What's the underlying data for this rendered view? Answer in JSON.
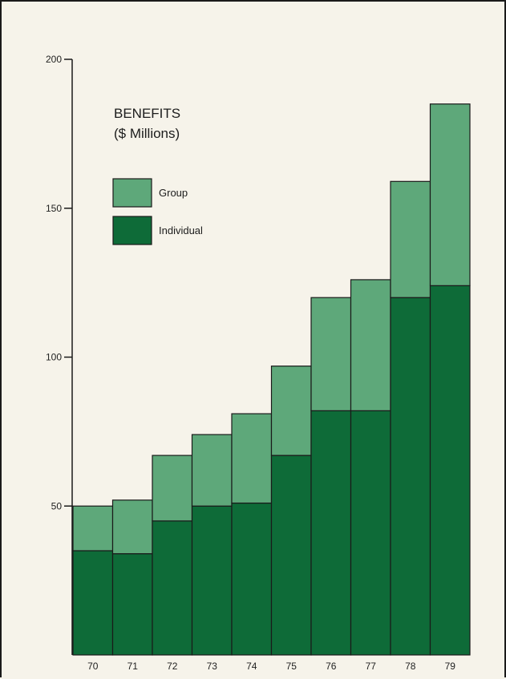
{
  "chart_data": {
    "type": "bar",
    "stacked": true,
    "title": "BENEFITS",
    "subtitle": "($ Millions)",
    "categories": [
      "70",
      "71",
      "72",
      "73",
      "74",
      "75",
      "76",
      "77",
      "78",
      "79"
    ],
    "series": [
      {
        "name": "Individual",
        "color": "#0e6b38",
        "values": [
          35,
          34,
          45,
          50,
          51,
          67,
          82,
          82,
          120,
          124
        ]
      },
      {
        "name": "Group",
        "color": "#5ea87a",
        "values": [
          15,
          18,
          22,
          24,
          30,
          30,
          38,
          44,
          39,
          61
        ]
      }
    ],
    "ylim": [
      0,
      200
    ],
    "yticks": [
      "50",
      "100",
      "150",
      "200"
    ],
    "legend": "upper-left",
    "grid": false
  }
}
